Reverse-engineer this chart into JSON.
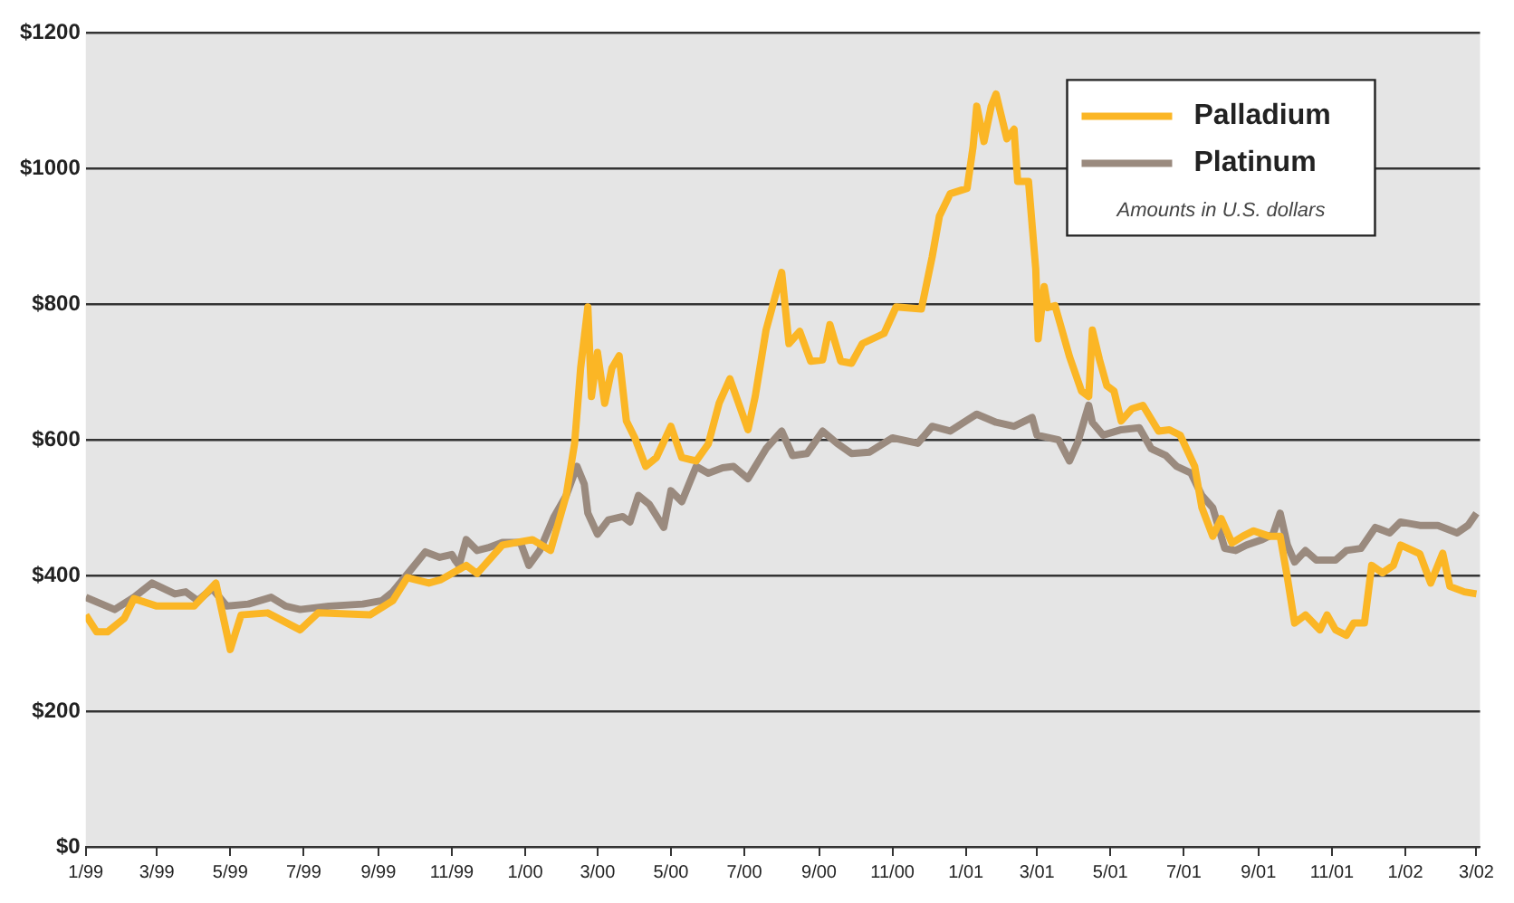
{
  "chart_data": {
    "type": "line",
    "legend": "top right",
    "grid": "y",
    "marker": "none",
    "line_style": "solid",
    "annotations": [
      "Amounts in U.S. dollars"
    ],
    "xlim": [
      "1999-01-01",
      "2002-03-04"
    ],
    "xticks": [
      {
        "value": "1999-01",
        "label": "1/99"
      },
      {
        "value": "1999-03",
        "label": "3/99"
      },
      {
        "value": "1999-05",
        "label": "5/99"
      },
      {
        "value": "1999-07",
        "label": "7/99"
      },
      {
        "value": "1999-09",
        "label": "9/99"
      },
      {
        "value": "1999-11",
        "label": "11/99"
      },
      {
        "value": "2000-01",
        "label": "1/00"
      },
      {
        "value": "2000-03",
        "label": "3/00"
      },
      {
        "value": "2000-05",
        "label": "5/00"
      },
      {
        "value": "2000-07",
        "label": "7/00"
      },
      {
        "value": "2000-09",
        "label": "9/00"
      },
      {
        "value": "2000-11",
        "label": "11/00"
      },
      {
        "value": "2001-01",
        "label": "1/01"
      },
      {
        "value": "2001-03",
        "label": "3/01"
      },
      {
        "value": "2001-05",
        "label": "5/01"
      },
      {
        "value": "2001-07",
        "label": "7/01"
      },
      {
        "value": "2001-09",
        "label": "9/01"
      },
      {
        "value": "2001-11",
        "label": "11/01"
      },
      {
        "value": "2002-01",
        "label": "1/02"
      },
      {
        "value": "2002-03",
        "label": "3/02"
      }
    ],
    "ylim": [
      0,
      1200
    ],
    "yticks": [
      {
        "value": 0,
        "label": "$0"
      },
      {
        "value": 200,
        "label": "$200"
      },
      {
        "value": 400,
        "label": "$400"
      },
      {
        "value": 600,
        "label": "$600"
      },
      {
        "value": 800,
        "label": "$800"
      },
      {
        "value": 1000,
        "label": "$1000"
      },
      {
        "value": 1200,
        "label": "$1200"
      }
    ],
    "series": [
      {
        "name": "Palladium",
        "color": "#fbb625",
        "x": [
          "1999-01-01",
          "1999-01-10",
          "1999-01-19",
          "1999-02-02",
          "1999-02-10",
          "1999-03-01",
          "1999-04-01",
          "1999-04-19",
          "1999-05-01",
          "1999-05-10",
          "1999-06-01",
          "1999-06-28",
          "1999-07-13",
          "1999-08-25",
          "1999-09-13",
          "1999-09-25",
          "1999-10-13",
          "1999-10-23",
          "1999-11-13",
          "1999-11-22",
          "1999-12-13",
          "2000-01-07",
          "2000-01-22",
          "2000-02-04",
          "2000-02-11",
          "2000-02-16",
          "2000-02-22",
          "2000-02-25",
          "2000-03-01",
          "2000-03-07",
          "2000-03-13",
          "2000-03-19",
          "2000-03-25",
          "2000-04-01",
          "2000-04-10",
          "2000-04-19",
          "2000-05-01",
          "2000-05-10",
          "2000-05-22",
          "2000-06-01",
          "2000-06-10",
          "2000-06-19",
          "2000-07-04",
          "2000-07-10",
          "2000-07-19",
          "2000-08-01",
          "2000-08-07",
          "2000-08-16",
          "2000-08-25",
          "2000-09-04",
          "2000-09-10",
          "2000-09-19",
          "2000-09-28",
          "2000-10-07",
          "2000-10-25",
          "2000-11-04",
          "2000-11-25",
          "2000-12-04",
          "2000-12-10",
          "2000-12-19",
          "2001-01-02",
          "2001-01-07",
          "2001-01-10",
          "2001-01-16",
          "2001-01-22",
          "2001-01-26",
          "2001-02-04",
          "2001-02-10",
          "2001-02-13",
          "2001-02-22",
          "2001-02-28",
          "2001-03-02",
          "2001-03-07",
          "2001-03-10",
          "2001-03-16",
          "2001-03-28",
          "2001-04-07",
          "2001-04-13",
          "2001-04-16",
          "2001-04-22",
          "2001-04-28",
          "2001-05-04",
          "2001-05-10",
          "2001-05-19",
          "2001-05-28",
          "2001-06-10",
          "2001-06-19",
          "2001-06-28",
          "2001-07-10",
          "2001-07-16",
          "2001-07-25",
          "2001-08-01",
          "2001-08-10",
          "2001-08-19",
          "2001-08-28",
          "2001-09-10",
          "2001-09-19",
          "2001-09-25",
          "2001-10-01",
          "2001-10-10",
          "2001-10-22",
          "2001-10-28",
          "2001-11-04",
          "2001-11-13",
          "2001-11-19",
          "2001-11-28",
          "2001-12-04",
          "2001-12-13",
          "2001-12-22",
          "2001-12-28",
          "2002-01-07",
          "2002-01-13",
          "2002-01-22",
          "2002-02-01",
          "2002-02-07",
          "2002-02-19",
          "2002-03-01"
        ],
        "values": [
          342,
          317,
          317,
          337,
          366,
          355,
          355,
          389,
          291,
          342,
          345,
          320,
          345,
          342,
          363,
          397,
          389,
          394,
          415,
          403,
          445,
          453,
          437,
          518,
          595,
          706,
          796,
          664,
          729,
          654,
          706,
          724,
          628,
          603,
          561,
          574,
          620,
          574,
          569,
          594,
          654,
          690,
          615,
          664,
          762,
          847,
          742,
          760,
          716,
          718,
          770,
          716,
          713,
          742,
          757,
          796,
          793,
          870,
          930,
          963,
          971,
          1033,
          1092,
          1040,
          1092,
          1110,
          1044,
          1058,
          981,
          981,
          852,
          749,
          826,
          795,
          798,
          723,
          672,
          664,
          762,
          718,
          680,
          672,
          628,
          646,
          651,
          613,
          615,
          607,
          561,
          500,
          458,
          484,
          448,
          458,
          466,
          458,
          458,
          397,
          330,
          342,
          320,
          342,
          320,
          312,
          330,
          330,
          415,
          404,
          415,
          445,
          437,
          432,
          389,
          433,
          384,
          376,
          373
        ]
      },
      {
        "name": "Platinum",
        "color": "#9a8a7e",
        "x": [
          "1999-01-01",
          "1999-01-25",
          "1999-02-10",
          "1999-02-25",
          "1999-03-16",
          "1999-03-25",
          "1999-04-04",
          "1999-04-16",
          "1999-04-28",
          "1999-05-16",
          "1999-06-04",
          "1999-06-16",
          "1999-06-28",
          "1999-07-22",
          "1999-08-19",
          "1999-09-04",
          "1999-09-13",
          "1999-09-25",
          "1999-10-10",
          "1999-10-22",
          "1999-11-01",
          "1999-11-04",
          "1999-11-07",
          "1999-11-13",
          "1999-11-22",
          "1999-12-01",
          "1999-12-13",
          "1999-12-28",
          "2000-01-04",
          "2000-01-13",
          "2000-01-25",
          "2000-02-04",
          "2000-02-13",
          "2000-02-19",
          "2000-02-22",
          "2000-03-01",
          "2000-03-10",
          "2000-03-22",
          "2000-03-28",
          "2000-04-04",
          "2000-04-13",
          "2000-04-25",
          "2000-05-01",
          "2000-05-10",
          "2000-05-22",
          "2000-06-01",
          "2000-06-13",
          "2000-06-22",
          "2000-07-04",
          "2000-07-19",
          "2000-08-01",
          "2000-08-10",
          "2000-08-22",
          "2000-09-04",
          "2000-09-16",
          "2000-09-28",
          "2000-10-13",
          "2000-11-01",
          "2000-11-22",
          "2000-12-04",
          "2000-12-19",
          "2001-01-10",
          "2001-01-26",
          "2001-02-10",
          "2001-02-25",
          "2001-03-01",
          "2001-03-19",
          "2001-03-28",
          "2001-04-04",
          "2001-04-13",
          "2001-04-16",
          "2001-04-25",
          "2001-05-10",
          "2001-05-25",
          "2001-06-04",
          "2001-06-16",
          "2001-06-25",
          "2001-07-07",
          "2001-07-16",
          "2001-07-25",
          "2001-08-04",
          "2001-08-13",
          "2001-08-22",
          "2001-09-04",
          "2001-09-13",
          "2001-09-19",
          "2001-09-25",
          "2001-10-01",
          "2001-10-10",
          "2001-10-19",
          "2001-11-04",
          "2001-11-13",
          "2001-11-25",
          "2001-12-07",
          "2001-12-19",
          "2001-12-28",
          "2002-01-13",
          "2002-01-28",
          "2002-02-13",
          "2002-02-22",
          "2002-03-01"
        ],
        "values": [
          368,
          350,
          368,
          389,
          373,
          376,
          363,
          381,
          355,
          358,
          368,
          355,
          350,
          355,
          358,
          363,
          376,
          402,
          435,
          427,
          431,
          422,
          415,
          453,
          437,
          441,
          449,
          449,
          415,
          437,
          487,
          518,
          561,
          535,
          492,
          461,
          482,
          487,
          479,
          518,
          505,
          471,
          525,
          509,
          561,
          551,
          559,
          561,
          543,
          587,
          613,
          577,
          580,
          613,
          595,
          580,
          582,
          603,
          595,
          620,
          613,
          638,
          626,
          620,
          633,
          607,
          600,
          569,
          597,
          651,
          626,
          607,
          615,
          618,
          587,
          577,
          561,
          551,
          518,
          500,
          440,
          437,
          445,
          453,
          461,
          492,
          445,
          420,
          437,
          423,
          423,
          437,
          440,
          471,
          463,
          479,
          474,
          474,
          463,
          474,
          492
        ]
      }
    ]
  }
}
